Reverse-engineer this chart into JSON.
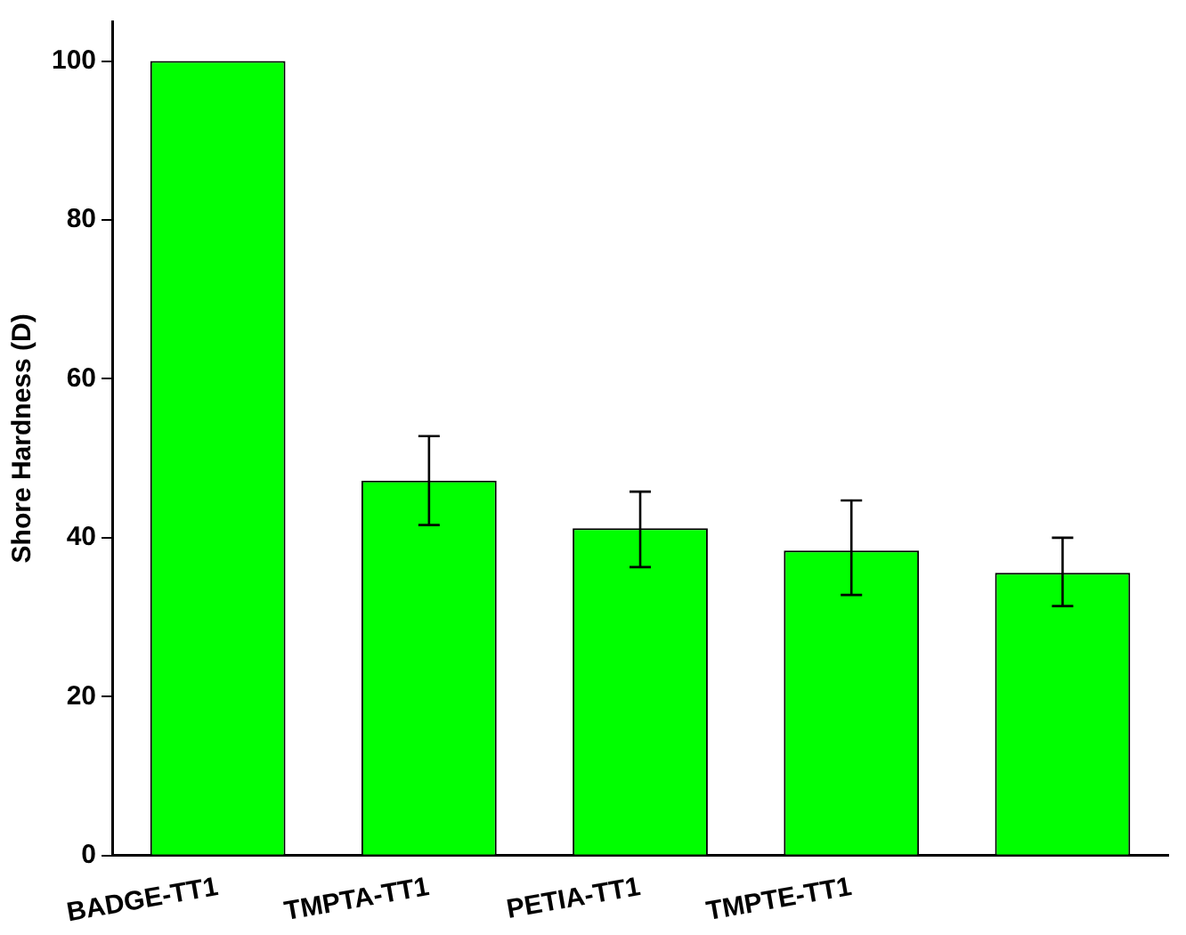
{
  "chart_data": {
    "type": "bar",
    "ylabel": "Shore Hardness (D)",
    "categories": [
      "BADGE-TT1",
      "TMPTA-TT1",
      "PETIA-TT1",
      "TMPTE-TT1",
      null
    ],
    "values": [
      100,
      47.2,
      41.2,
      38.4,
      35.6
    ],
    "errors": [
      null,
      [
        41.6,
        52.8
      ],
      [
        36.3,
        45.8
      ],
      [
        32.8,
        44.7
      ],
      [
        31.4,
        40
      ]
    ],
    "color": "#00ff00",
    "ylim": [
      0,
      105
    ],
    "yticks": [
      0,
      20,
      40,
      60,
      80,
      100
    ],
    "grid": false,
    "legend": false
  }
}
